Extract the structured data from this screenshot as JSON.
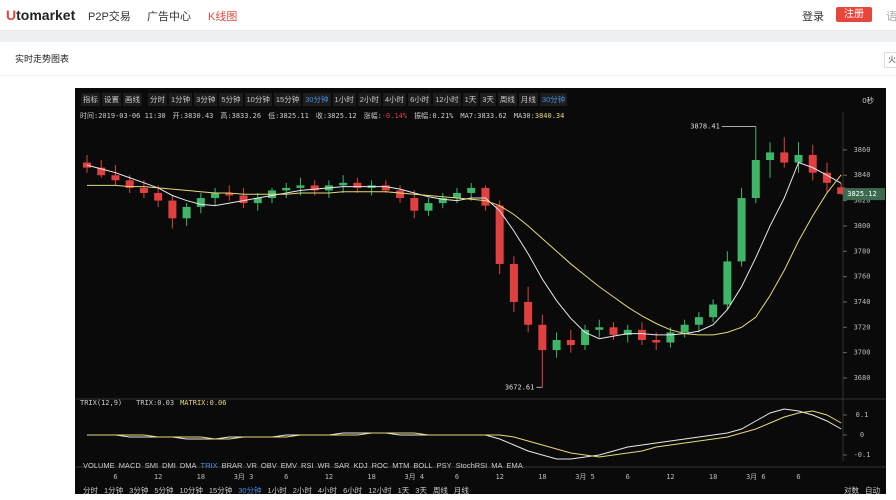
{
  "nav": {
    "logo": "Utomarket",
    "links": [
      "P2P交易",
      "广告中心",
      "K线图"
    ],
    "login": "登录",
    "register": "注册",
    "lang": "语"
  },
  "page": {
    "title": "实时走势图表",
    "side_button": "火"
  },
  "toolbar": {
    "tools": [
      "指标",
      "设置",
      "画线"
    ],
    "periods": [
      "分时",
      "1分钟",
      "3分钟",
      "5分钟",
      "10分钟",
      "15分钟",
      "30分钟",
      "1小时",
      "2小时",
      "4小时",
      "6小时",
      "12小时",
      "1天",
      "3天",
      "周线",
      "月线"
    ],
    "dropdown": "30分钟",
    "countdown": "0秒"
  },
  "chart_data": {
    "type": "candlestick",
    "info": {
      "time_label": "时间:",
      "time": "2019-03-06 11:30",
      "open_label": "开:",
      "high_label": "高:",
      "low_label": "低:",
      "close_label": "收:",
      "change_label": "涨幅:",
      "change": "-0.14%",
      "amplitude_label": "振幅:",
      "amplitude": "0.21%",
      "ma7_label": "MA7:",
      "ma30_label": "MA30:"
    },
    "categories": [
      null,
      null,
      "6",
      null,
      null,
      "12",
      null,
      null,
      "18",
      null,
      null,
      "3月 3",
      null,
      null,
      "6",
      null,
      null,
      "12",
      null,
      null,
      "18",
      null,
      null,
      "3月 4",
      null,
      null,
      "6",
      null,
      null,
      "12",
      null,
      null,
      "18",
      null,
      null,
      "3月 5",
      null,
      null,
      "6",
      null,
      null,
      "12",
      null,
      null,
      "18",
      null,
      null,
      "3月 6",
      null,
      null,
      "6",
      null,
      null,
      null
    ],
    "open": [
      3850,
      3846,
      3840,
      3836,
      3830,
      3826,
      3820,
      3806,
      3815,
      3822,
      3826,
      3824,
      3818,
      3822,
      3828,
      3830,
      3832,
      3828,
      3832,
      3834,
      3830,
      3832,
      3828,
      3822,
      3812,
      3818,
      3822,
      3826,
      3830,
      3816,
      3770,
      3740,
      3722,
      3702,
      3710,
      3706,
      3718,
      3720,
      3714,
      3718,
      3710,
      3708,
      3716,
      3722,
      3728,
      3738,
      3772,
      3822,
      3852,
      3858,
      3850,
      3856,
      3842,
      3830.43
    ],
    "high": [
      3856,
      3852,
      3848,
      3840,
      3836,
      3832,
      3824,
      3818,
      3826,
      3830,
      3832,
      3830,
      3826,
      3830,
      3834,
      3838,
      3836,
      3836,
      3840,
      3838,
      3836,
      3836,
      3832,
      3828,
      3822,
      3826,
      3830,
      3834,
      3832,
      3820,
      3776,
      3752,
      3730,
      3716,
      3718,
      3722,
      3726,
      3724,
      3722,
      3724,
      3716,
      3720,
      3726,
      3732,
      3742,
      3780,
      3830,
      3878.41,
      3866,
      3870,
      3866,
      3864,
      3850,
      3833.26
    ],
    "low": [
      3842,
      3838,
      3832,
      3826,
      3822,
      3815,
      3798,
      3800,
      3810,
      3816,
      3820,
      3814,
      3812,
      3818,
      3822,
      3824,
      3824,
      3822,
      3826,
      3826,
      3824,
      3826,
      3818,
      3806,
      3808,
      3814,
      3818,
      3820,
      3812,
      3762,
      3732,
      3716,
      3672.61,
      3696,
      3700,
      3702,
      3712,
      3710,
      3708,
      3706,
      3702,
      3704,
      3712,
      3716,
      3724,
      3734,
      3768,
      3818,
      3838,
      3846,
      3842,
      3836,
      3826,
      3825.11
    ],
    "close": [
      3846,
      3840,
      3836,
      3830,
      3826,
      3820,
      3806,
      3815,
      3822,
      3826,
      3824,
      3818,
      3822,
      3828,
      3830,
      3832,
      3828,
      3832,
      3834,
      3830,
      3832,
      3828,
      3822,
      3812,
      3818,
      3822,
      3826,
      3830,
      3816,
      3770,
      3740,
      3722,
      3702,
      3710,
      3706,
      3718,
      3720,
      3714,
      3718,
      3710,
      3708,
      3716,
      3722,
      3728,
      3738,
      3772,
      3822,
      3852,
      3858,
      3850,
      3856,
      3842,
      3834,
      3825.12
    ],
    "ma7": [
      3848,
      3845,
      3842,
      3838,
      3834,
      3830,
      3824,
      3820,
      3817,
      3816,
      3818,
      3820,
      3822,
      3824,
      3826,
      3828,
      3829,
      3830,
      3831,
      3831,
      3831,
      3831,
      3829,
      3826,
      3823,
      3821,
      3820,
      3822,
      3822,
      3812,
      3796,
      3778,
      3758,
      3741,
      3727,
      3716,
      3711,
      3713,
      3715,
      3715,
      3714,
      3714,
      3715,
      3717,
      3722,
      3734,
      3752,
      3775,
      3800,
      3822,
      3850,
      3846,
      3840,
      3833.62
    ],
    "ma30": [
      3832,
      3832,
      3832,
      3831,
      3831,
      3830,
      3829,
      3828,
      3827,
      3826,
      3826,
      3825,
      3825,
      3825,
      3825,
      3826,
      3826,
      3826,
      3827,
      3827,
      3827,
      3827,
      3826,
      3825,
      3824,
      3823,
      3822,
      3821,
      3820,
      3816,
      3809,
      3800,
      3790,
      3780,
      3770,
      3761,
      3752,
      3744,
      3736,
      3729,
      3723,
      3718,
      3715,
      3714,
      3714,
      3716,
      3720,
      3728,
      3745,
      3765,
      3788,
      3808,
      3826,
      3840.34
    ],
    "up_color": "#3fb56a",
    "down_color": "#e0403f",
    "ma7_color": "#e8e8e8",
    "ma30_color": "#e6d97a",
    "ylim": [
      3665,
      3882
    ],
    "yticks": [
      3680,
      3700,
      3720,
      3740,
      3760,
      3780,
      3800,
      3820,
      3840,
      3860
    ],
    "trix_title": "TRIX(12,9)",
    "trix_label": "TRIX:",
    "matrix_label": "MATRIX:",
    "trix": [
      0,
      0,
      0,
      -0.01,
      -0.01,
      -0.01,
      -0.01,
      -0.02,
      -0.02,
      -0.02,
      -0.01,
      -0.01,
      -0.01,
      -0.01,
      0,
      0,
      0,
      0,
      0.01,
      0.01,
      0.01,
      0.01,
      0,
      0,
      0,
      0,
      0,
      0,
      0,
      -0.02,
      -0.05,
      -0.08,
      -0.1,
      -0.12,
      -0.12,
      -0.11,
      -0.1,
      -0.08,
      -0.06,
      -0.05,
      -0.04,
      -0.03,
      -0.02,
      -0.01,
      0,
      0.01,
      0.03,
      0.07,
      0.11,
      0.13,
      0.12,
      0.1,
      0.07,
      0.03
    ],
    "matrix": [
      0,
      0,
      0,
      0,
      0,
      -0.01,
      -0.01,
      -0.01,
      -0.01,
      -0.02,
      -0.02,
      -0.01,
      -0.01,
      -0.01,
      -0.01,
      0,
      0,
      0,
      0,
      0,
      0.01,
      0.01,
      0.01,
      0.01,
      0,
      0,
      0,
      0,
      0,
      0,
      -0.01,
      -0.03,
      -0.05,
      -0.07,
      -0.09,
      -0.1,
      -0.11,
      -0.1,
      -0.09,
      -0.08,
      -0.06,
      -0.05,
      -0.04,
      -0.03,
      -0.02,
      -0.01,
      0.01,
      0.03,
      0.06,
      0.09,
      0.11,
      0.12,
      0.1,
      0.06
    ],
    "trix_ylim": [
      -0.13,
      0.15
    ],
    "trix_yticks": [
      0.1,
      0,
      -0.1
    ],
    "indicators": [
      "VOLUME",
      "MACD",
      "SMI",
      "DMI",
      "DMA",
      "TRIX",
      "BRAR",
      "VR",
      "OBV",
      "EMV",
      "RSI",
      "WR",
      "SAR",
      "KDJ",
      "ROC",
      "MTM",
      "BOLL",
      "PSY",
      "StochRSI",
      "MA",
      "EMA"
    ],
    "scale_options": [
      "对数",
      "自动"
    ]
  }
}
